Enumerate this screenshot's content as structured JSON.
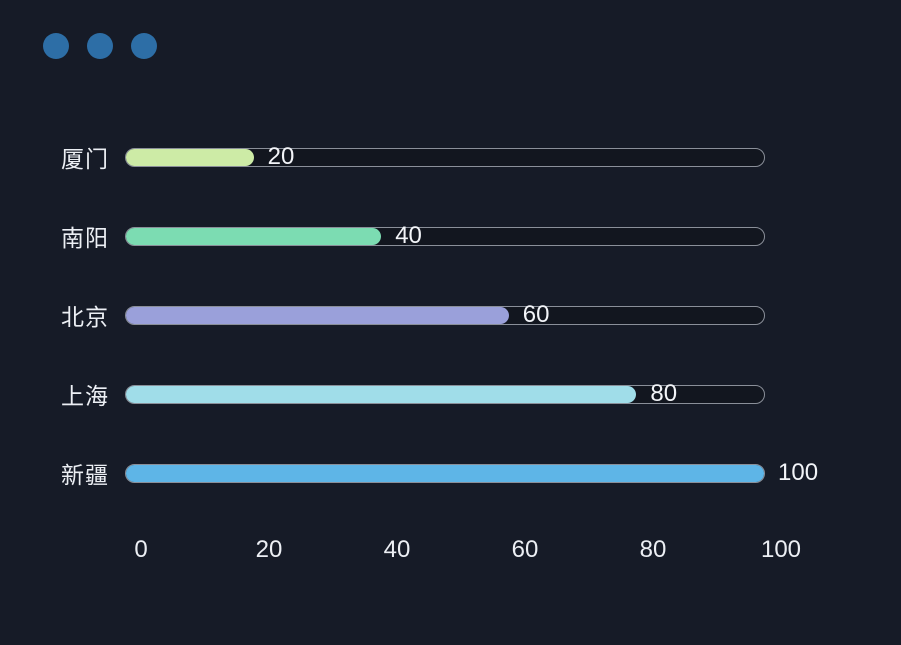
{
  "window": {
    "background_color": "#161b27",
    "traffic_dots": {
      "count": 3,
      "color": "#2d6ea6",
      "names": [
        "window-dot-1",
        "window-dot-2",
        "window-dot-3"
      ]
    }
  },
  "chart_data": {
    "type": "bar",
    "orientation": "horizontal",
    "title": "",
    "xlabel": "",
    "ylabel": "",
    "categories": [
      "厦门",
      "南阳",
      "北京",
      "上海",
      "新疆"
    ],
    "values": [
      20,
      40,
      60,
      80,
      100
    ],
    "value_labels": [
      "20",
      "40",
      "60",
      "80",
      "100"
    ],
    "bar_colors": [
      "#cdeba6",
      "#7cdcb2",
      "#9aa0da",
      "#a0dde9",
      "#5eb5e7"
    ],
    "track_border_color": "#8a8f99",
    "text_color": "#eceff4",
    "xlim": [
      0,
      100
    ],
    "x_ticks": [
      0,
      20,
      40,
      60,
      80,
      100
    ],
    "grid": false,
    "legend": false
  }
}
